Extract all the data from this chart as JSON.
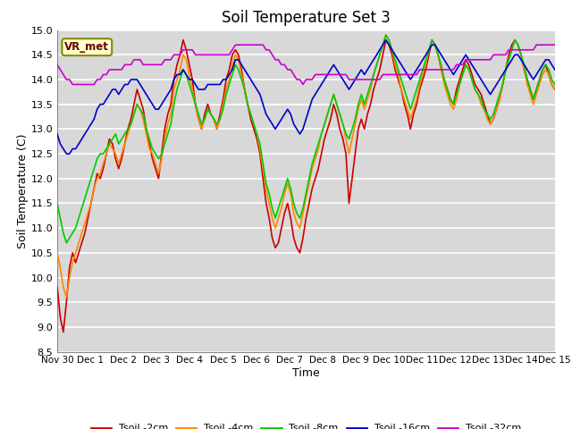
{
  "title": "Soil Temperature Set 3",
  "xlabel": "Time",
  "ylabel": "Soil Temperature (C)",
  "ylim": [
    8.5,
    15.0
  ],
  "yticks": [
    8.5,
    9.0,
    9.5,
    10.0,
    10.5,
    11.0,
    11.5,
    12.0,
    12.5,
    13.0,
    13.5,
    14.0,
    14.5,
    15.0
  ],
  "fig_bg_color": "#ffffff",
  "plot_bg_color": "#d8d8d8",
  "vr_met_label": "VR_met",
  "legend_labels": [
    "Tsoil -2cm",
    "Tsoil -4cm",
    "Tsoil -8cm",
    "Tsoil -16cm",
    "Tsoil -32cm"
  ],
  "colors": [
    "#cc0000",
    "#ff8800",
    "#00cc00",
    "#0000cc",
    "#cc00cc"
  ],
  "series_2cm": [
    9.8,
    9.2,
    8.9,
    9.5,
    10.2,
    10.5,
    10.3,
    10.5,
    10.7,
    10.9,
    11.2,
    11.5,
    11.8,
    12.1,
    12.0,
    12.2,
    12.5,
    12.8,
    12.7,
    12.4,
    12.2,
    12.4,
    12.7,
    13.0,
    13.2,
    13.5,
    13.8,
    13.6,
    13.4,
    13.0,
    12.7,
    12.4,
    12.2,
    12.0,
    12.5,
    13.0,
    13.3,
    13.5,
    14.0,
    14.3,
    14.5,
    14.8,
    14.6,
    14.3,
    14.0,
    13.5,
    13.2,
    13.0,
    13.3,
    13.5,
    13.3,
    13.2,
    13.0,
    13.3,
    13.6,
    14.0,
    14.2,
    14.5,
    14.6,
    14.5,
    14.2,
    13.8,
    13.5,
    13.2,
    13.0,
    12.8,
    12.5,
    12.0,
    11.5,
    11.2,
    10.8,
    10.6,
    10.7,
    11.0,
    11.3,
    11.5,
    11.2,
    10.8,
    10.6,
    10.5,
    10.8,
    11.2,
    11.5,
    11.8,
    12.0,
    12.2,
    12.5,
    12.8,
    13.0,
    13.2,
    13.5,
    13.3,
    13.0,
    12.8,
    12.5,
    11.5,
    12.0,
    12.5,
    13.0,
    13.2,
    13.0,
    13.3,
    13.5,
    13.8,
    14.0,
    14.2,
    14.5,
    14.8,
    14.7,
    14.5,
    14.2,
    14.0,
    13.8,
    13.5,
    13.3,
    13.0,
    13.3,
    13.5,
    13.8,
    14.0,
    14.2,
    14.5,
    14.8,
    14.7,
    14.5,
    14.2,
    14.0,
    13.8,
    13.6,
    13.5,
    13.8,
    14.0,
    14.2,
    14.4,
    14.3,
    14.1,
    13.9,
    13.8,
    13.7,
    13.5,
    13.3,
    13.1,
    13.2,
    13.4,
    13.6,
    13.9,
    14.2,
    14.5,
    14.7,
    14.8,
    14.7,
    14.5,
    14.2,
    14.0,
    13.8,
    13.6,
    13.8,
    14.0,
    14.2,
    14.3,
    14.1,
    13.9,
    13.8
  ],
  "series_4cm": [
    10.5,
    10.2,
    9.8,
    9.6,
    10.0,
    10.3,
    10.5,
    10.7,
    10.9,
    11.1,
    11.3,
    11.5,
    11.8,
    12.0,
    12.1,
    12.3,
    12.5,
    12.7,
    12.6,
    12.5,
    12.3,
    12.5,
    12.7,
    12.9,
    13.1,
    13.3,
    13.5,
    13.4,
    13.2,
    12.9,
    12.6,
    12.5,
    12.3,
    12.1,
    12.4,
    12.8,
    13.1,
    13.3,
    13.8,
    14.0,
    14.2,
    14.5,
    14.4,
    14.1,
    13.8,
    13.5,
    13.2,
    13.0,
    13.2,
    13.4,
    13.3,
    13.2,
    13.0,
    13.2,
    13.5,
    13.8,
    14.0,
    14.3,
    14.5,
    14.4,
    14.1,
    13.8,
    13.5,
    13.3,
    13.1,
    12.9,
    12.6,
    12.2,
    11.8,
    11.5,
    11.2,
    11.0,
    11.2,
    11.4,
    11.7,
    11.9,
    11.7,
    11.3,
    11.1,
    11.0,
    11.3,
    11.6,
    11.9,
    12.2,
    12.4,
    12.6,
    12.9,
    13.1,
    13.3,
    13.5,
    13.7,
    13.5,
    13.3,
    13.1,
    12.8,
    12.5,
    12.8,
    13.1,
    13.4,
    13.6,
    13.4,
    13.6,
    13.8,
    14.1,
    14.3,
    14.5,
    14.7,
    14.9,
    14.8,
    14.6,
    14.3,
    14.1,
    13.8,
    13.6,
    13.4,
    13.2,
    13.4,
    13.6,
    13.9,
    14.1,
    14.3,
    14.6,
    14.8,
    14.7,
    14.5,
    14.2,
    13.9,
    13.7,
    13.5,
    13.4,
    13.6,
    13.9,
    14.1,
    14.3,
    14.2,
    14.0,
    13.8,
    13.7,
    13.5,
    13.4,
    13.2,
    13.1,
    13.2,
    13.4,
    13.6,
    13.9,
    14.2,
    14.4,
    14.6,
    14.8,
    14.7,
    14.5,
    14.2,
    13.9,
    13.7,
    13.5,
    13.7,
    13.9,
    14.1,
    14.2,
    14.1,
    13.9,
    13.8
  ],
  "series_8cm": [
    11.5,
    11.2,
    10.9,
    10.7,
    10.8,
    10.9,
    11.0,
    11.2,
    11.4,
    11.6,
    11.8,
    12.0,
    12.2,
    12.4,
    12.5,
    12.5,
    12.6,
    12.7,
    12.8,
    12.9,
    12.7,
    12.8,
    12.9,
    13.0,
    13.1,
    13.3,
    13.5,
    13.4,
    13.3,
    13.0,
    12.8,
    12.6,
    12.5,
    12.4,
    12.5,
    12.7,
    12.9,
    13.1,
    13.5,
    13.8,
    14.0,
    14.2,
    14.1,
    13.9,
    13.7,
    13.5,
    13.3,
    13.1,
    13.2,
    13.4,
    13.3,
    13.2,
    13.1,
    13.2,
    13.4,
    13.7,
    13.9,
    14.1,
    14.3,
    14.2,
    14.0,
    13.8,
    13.5,
    13.3,
    13.1,
    12.9,
    12.7,
    12.3,
    11.9,
    11.7,
    11.4,
    11.2,
    11.4,
    11.6,
    11.8,
    12.0,
    11.8,
    11.5,
    11.3,
    11.2,
    11.4,
    11.7,
    12.0,
    12.3,
    12.5,
    12.7,
    12.9,
    13.1,
    13.3,
    13.5,
    13.7,
    13.5,
    13.3,
    13.1,
    12.9,
    12.8,
    13.0,
    13.2,
    13.5,
    13.7,
    13.5,
    13.7,
    13.9,
    14.1,
    14.3,
    14.5,
    14.7,
    14.9,
    14.8,
    14.6,
    14.4,
    14.2,
    14.0,
    13.8,
    13.6,
    13.4,
    13.6,
    13.8,
    14.0,
    14.2,
    14.4,
    14.6,
    14.8,
    14.7,
    14.5,
    14.3,
    14.0,
    13.8,
    13.6,
    13.5,
    13.7,
    13.9,
    14.1,
    14.3,
    14.2,
    14.0,
    13.8,
    13.7,
    13.6,
    13.4,
    13.3,
    13.2,
    13.3,
    13.5,
    13.7,
    13.9,
    14.2,
    14.4,
    14.6,
    14.8,
    14.7,
    14.5,
    14.3,
    14.0,
    13.8,
    13.6,
    13.8,
    14.0,
    14.2,
    14.3,
    14.2,
    14.0,
    13.9
  ],
  "series_16cm": [
    12.9,
    12.7,
    12.6,
    12.5,
    12.5,
    12.6,
    12.6,
    12.7,
    12.8,
    12.9,
    13.0,
    13.1,
    13.2,
    13.4,
    13.5,
    13.5,
    13.6,
    13.7,
    13.8,
    13.8,
    13.7,
    13.8,
    13.9,
    13.9,
    14.0,
    14.0,
    14.0,
    13.9,
    13.8,
    13.7,
    13.6,
    13.5,
    13.4,
    13.4,
    13.5,
    13.6,
    13.7,
    13.8,
    14.0,
    14.1,
    14.1,
    14.2,
    14.1,
    14.0,
    14.0,
    13.9,
    13.8,
    13.8,
    13.8,
    13.9,
    13.9,
    13.9,
    13.9,
    13.9,
    14.0,
    14.0,
    14.1,
    14.2,
    14.4,
    14.4,
    14.3,
    14.2,
    14.1,
    14.0,
    13.9,
    13.8,
    13.7,
    13.5,
    13.3,
    13.2,
    13.1,
    13.0,
    13.1,
    13.2,
    13.3,
    13.4,
    13.3,
    13.1,
    13.0,
    12.9,
    13.0,
    13.2,
    13.4,
    13.6,
    13.7,
    13.8,
    13.9,
    14.0,
    14.1,
    14.2,
    14.3,
    14.2,
    14.1,
    14.0,
    13.9,
    13.8,
    13.9,
    14.0,
    14.1,
    14.2,
    14.1,
    14.2,
    14.3,
    14.4,
    14.5,
    14.6,
    14.7,
    14.8,
    14.7,
    14.6,
    14.5,
    14.4,
    14.3,
    14.2,
    14.1,
    14.0,
    14.1,
    14.2,
    14.3,
    14.4,
    14.5,
    14.6,
    14.7,
    14.7,
    14.6,
    14.5,
    14.4,
    14.3,
    14.2,
    14.1,
    14.2,
    14.3,
    14.4,
    14.5,
    14.4,
    14.3,
    14.2,
    14.1,
    14.0,
    13.9,
    13.8,
    13.7,
    13.8,
    13.9,
    14.0,
    14.1,
    14.2,
    14.3,
    14.4,
    14.5,
    14.5,
    14.4,
    14.3,
    14.2,
    14.1,
    14.0,
    14.1,
    14.2,
    14.3,
    14.4,
    14.4,
    14.3,
    14.2
  ],
  "series_32cm": [
    14.3,
    14.2,
    14.1,
    14.0,
    14.0,
    13.9,
    13.9,
    13.9,
    13.9,
    13.9,
    13.9,
    13.9,
    13.9,
    14.0,
    14.0,
    14.1,
    14.1,
    14.2,
    14.2,
    14.2,
    14.2,
    14.2,
    14.3,
    14.3,
    14.3,
    14.4,
    14.4,
    14.4,
    14.3,
    14.3,
    14.3,
    14.3,
    14.3,
    14.3,
    14.3,
    14.4,
    14.4,
    14.4,
    14.5,
    14.5,
    14.5,
    14.6,
    14.6,
    14.6,
    14.6,
    14.5,
    14.5,
    14.5,
    14.5,
    14.5,
    14.5,
    14.5,
    14.5,
    14.5,
    14.5,
    14.5,
    14.5,
    14.6,
    14.7,
    14.7,
    14.7,
    14.7,
    14.7,
    14.7,
    14.7,
    14.7,
    14.7,
    14.7,
    14.6,
    14.6,
    14.5,
    14.4,
    14.4,
    14.3,
    14.3,
    14.2,
    14.2,
    14.1,
    14.0,
    14.0,
    13.9,
    14.0,
    14.0,
    14.0,
    14.1,
    14.1,
    14.1,
    14.1,
    14.1,
    14.1,
    14.1,
    14.1,
    14.1,
    14.1,
    14.1,
    14.0,
    14.0,
    14.0,
    14.0,
    14.0,
    14.0,
    14.0,
    14.0,
    14.0,
    14.0,
    14.0,
    14.1,
    14.1,
    14.1,
    14.1,
    14.1,
    14.1,
    14.1,
    14.1,
    14.1,
    14.1,
    14.1,
    14.1,
    14.2,
    14.2,
    14.2,
    14.2,
    14.2,
    14.2,
    14.2,
    14.2,
    14.2,
    14.2,
    14.2,
    14.2,
    14.3,
    14.3,
    14.3,
    14.4,
    14.4,
    14.4,
    14.4,
    14.4,
    14.4,
    14.4,
    14.4,
    14.4,
    14.5,
    14.5,
    14.5,
    14.5,
    14.5,
    14.6,
    14.6,
    14.6,
    14.6,
    14.6,
    14.6,
    14.6,
    14.6,
    14.6,
    14.7,
    14.7,
    14.7,
    14.7,
    14.7,
    14.7,
    14.7
  ]
}
